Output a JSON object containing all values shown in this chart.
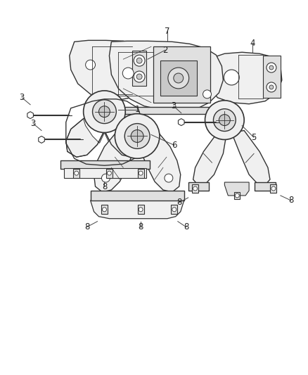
{
  "background_color": "#ffffff",
  "line_color": "#333333",
  "fill_light": "#f0f0f0",
  "fill_mid": "#e0e0e0",
  "fill_dark": "#c8c8c8",
  "label_fontsize": 8.5,
  "figsize": [
    4.38,
    5.33
  ],
  "dpi": 100
}
